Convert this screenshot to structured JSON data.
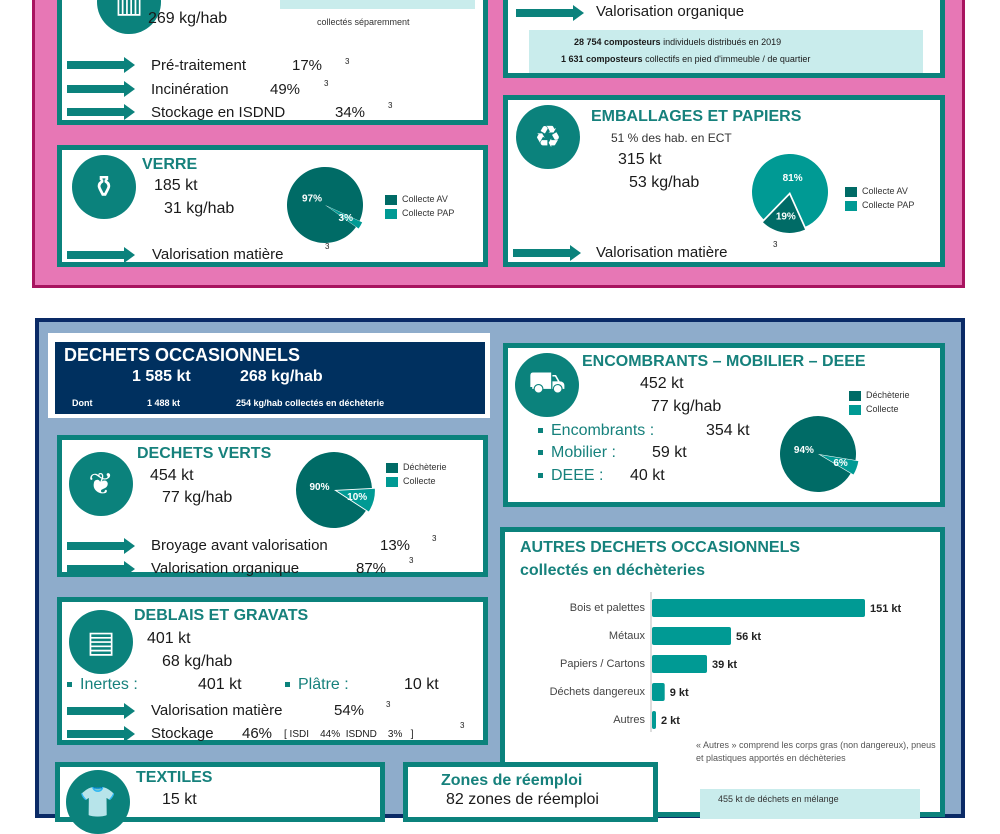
{
  "colors": {
    "dark": "#006b66",
    "light": "#009a94",
    "teal": "#0b827c",
    "pink": "#e777b5",
    "navy": "#0a2a66",
    "blue": "#8eaccb"
  },
  "omr": {
    "kg_hab": "269 kg/hab",
    "note": "collectés séparemment",
    "rows": [
      {
        "label": "Pré-traitement",
        "pct": "17%",
        "sup": "3"
      },
      {
        "label": "Incinération",
        "pct": "49%",
        "sup": "3"
      },
      {
        "label": "Stockage en ISDND",
        "pct": "34%",
        "sup": "3"
      }
    ]
  },
  "bio": {
    "valorisation": "Valorisation organique",
    "line1_num": "28 754",
    "line1_bold": "composteurs",
    "line1_rest": "individuels distribués en 2019",
    "line2_num": "1 631",
    "line2_bold": "composteurs",
    "line2_rest": "collectifs en pied d'immeuble / de quartier"
  },
  "verre": {
    "title": "VERRE",
    "kt": "185  kt",
    "kg": "31  kg/hab",
    "valorisation": "Valorisation matière",
    "sup": "3",
    "legend": [
      "Collecte AV",
      "Collecte PAP"
    ]
  },
  "emballages": {
    "title": "EMBALLAGES ET PAPIERS",
    "ect": "51  % des hab. en ECT",
    "kt": "315  kt",
    "kg": "53  kg/hab",
    "valorisation": "Valorisation matière",
    "sup": "3",
    "legend": [
      "Collecte AV",
      "Collecte PAP"
    ]
  },
  "occasionnels": {
    "title": "DECHETS OCCASIONNELS",
    "kt": "1 585  kt",
    "kg": "268 kg/hab",
    "dont": "Dont",
    "dont_kt": "1 488  kt",
    "dont_rest": "254  kg/hab collectés en déchèterie"
  },
  "encombrants": {
    "title": "ENCOMBRANTS – MOBILIER – DEEE",
    "kt": "452  kt",
    "kg": "77  kg/hab",
    "items": [
      {
        "label": "Encombrants :",
        "value": "354  kt"
      },
      {
        "label": "Mobilier :",
        "value": "59  kt"
      },
      {
        "label": "DEEE :",
        "value": "40  kt"
      }
    ],
    "legend": [
      "Déchèterie",
      "Collecte"
    ]
  },
  "verts": {
    "title": "DECHETS VERTS",
    "kt": "454  kt",
    "kg": "77  kg/hab",
    "legend": [
      "Déchèterie",
      "Collecte"
    ],
    "rows": [
      {
        "label": "Broyage avant valorisation",
        "pct": "13%",
        "sup": "3"
      },
      {
        "label": "Valorisation organique",
        "pct": "87%",
        "sup": "3"
      }
    ]
  },
  "deblais": {
    "title": "DEBLAIS ET GRAVATS",
    "kt": "401  kt",
    "kg": "68  kg/hab",
    "inertes_label": "Inertes :",
    "inertes_value": "401  kt",
    "platre_label": "Plâtre :",
    "platre_value": "10  kt",
    "valorisation": "Valorisation matière",
    "valorisation_pct": "54%",
    "sup": "3",
    "stockage": "Stockage",
    "stockage_pct": "46%",
    "stockage_detail": "[ ISDI    44%  ISDND    3%   ]"
  },
  "autres": {
    "title": "AUTRES DECHETS OCCASIONNELS",
    "subtitle": "collectés en déchèteries",
    "note": "« Autres » comprend les corps gras (non dangereux), pneus et plastiques apportés en déchèteries",
    "box_text": "455   kt de déchets en mélange"
  },
  "textiles": {
    "title": "TEXTILES",
    "kt": "15  kt"
  },
  "zones": {
    "title": "Zones de réemploi",
    "text": "82  zones de réemploi"
  },
  "chart_data": [
    {
      "type": "pie",
      "id": "verre",
      "categories": [
        "Collecte AV",
        "Collecte PAP"
      ],
      "values": [
        97,
        3
      ],
      "labels": [
        "97%",
        "3%"
      ]
    },
    {
      "type": "pie",
      "id": "emballages",
      "categories": [
        "Collecte AV",
        "Collecte PAP"
      ],
      "values": [
        19,
        81
      ],
      "labels": [
        "19%",
        "81%"
      ]
    },
    {
      "type": "pie",
      "id": "verts",
      "categories": [
        "Déchèterie",
        "Collecte"
      ],
      "values": [
        90,
        10
      ],
      "labels": [
        "90%",
        "10%"
      ]
    },
    {
      "type": "pie",
      "id": "encombrants",
      "categories": [
        "Déchèterie",
        "Collecte"
      ],
      "values": [
        94,
        6
      ],
      "labels": [
        "94%",
        "6%"
      ]
    },
    {
      "type": "bar",
      "id": "autres",
      "orientation": "horizontal",
      "categories": [
        "Bois et palettes",
        "Métaux",
        "Papiers / Cartons",
        "Déchets dangereux",
        "Autres"
      ],
      "values": [
        151,
        56,
        39,
        9,
        2
      ],
      "labels": [
        "151 kt",
        "56 kt",
        "39 kt",
        "9 kt",
        "2 kt"
      ],
      "unit": "kt"
    }
  ]
}
